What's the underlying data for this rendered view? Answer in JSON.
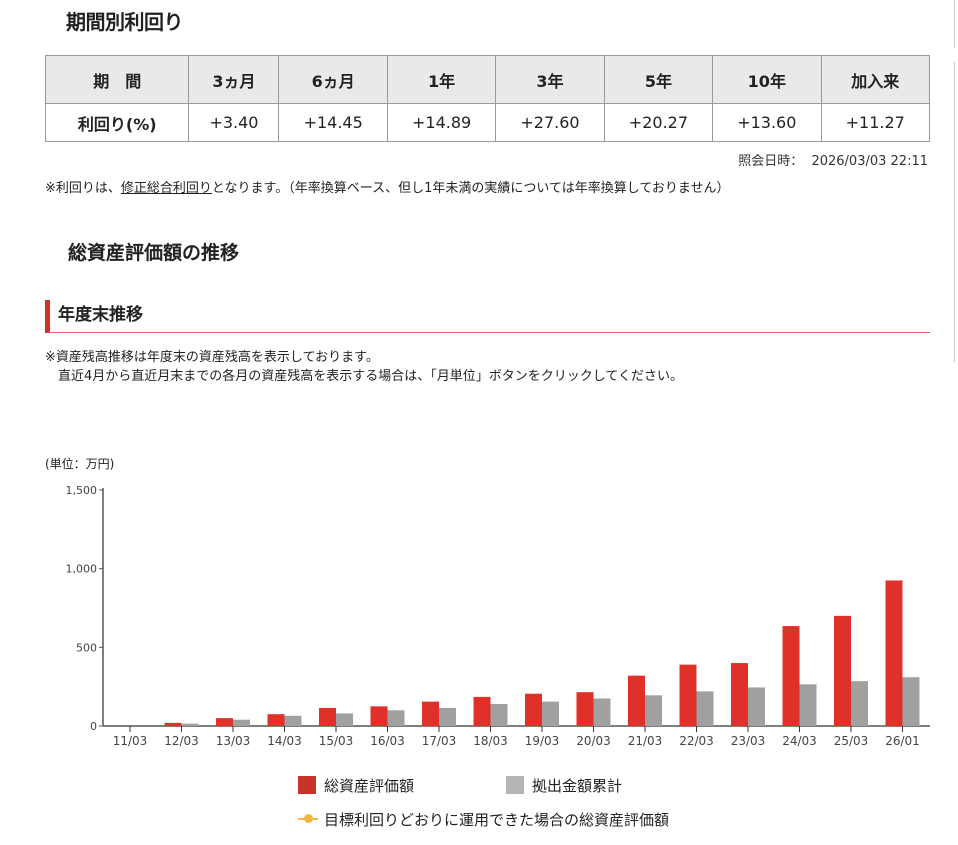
{
  "section_title": "期間別利回り",
  "yield_table": {
    "header_label": "期　間",
    "row_label": "利回り(%)",
    "periods": [
      "3ヵ月",
      "6ヵ月",
      "1年",
      "3年",
      "5年",
      "10年",
      "加入来"
    ],
    "values": [
      "+3.40",
      "+14.45",
      "+14.89",
      "+27.60",
      "+20.27",
      "+13.60",
      "+11.27"
    ]
  },
  "query_label": "照会日時：",
  "query_datetime": "2026/03/03 22:11",
  "note_prefix": "※利回りは、",
  "note_link": "修正総合利回り",
  "note_suffix": "となります。（年率換算ベース、但し1年未満の実績については年率換算しておりません）",
  "asset_title": "総資産評価額の推移",
  "subsection_title": "年度末推移",
  "note2_line1": "※資産残高推移は年度末の資産残高を表示しております。",
  "note2_line2": "直近4月から直近月末までの各月の資産残高を表示する場合は、「月単位」ボタンをクリックしてください。",
  "unit_label": "(単位：万円)",
  "colors": {
    "total": "#e0302a",
    "contrib": "#a0a0a0",
    "target": "#f0b840",
    "accent": "#c9332b"
  },
  "chart_data": {
    "type": "bar",
    "categories": [
      "11/03",
      "12/03",
      "13/03",
      "14/03",
      "15/03",
      "16/03",
      "17/03",
      "18/03",
      "19/03",
      "20/03",
      "21/03",
      "22/03",
      "23/03",
      "24/03",
      "25/03",
      "26/01"
    ],
    "series": [
      {
        "name": "総資産評価額",
        "values": [
          0,
          20,
          50,
          75,
          115,
          125,
          155,
          185,
          205,
          215,
          320,
          390,
          400,
          635,
          700,
          925
        ]
      },
      {
        "name": "拠出金額累計",
        "values": [
          0,
          15,
          40,
          65,
          80,
          100,
          115,
          140,
          155,
          175,
          195,
          220,
          245,
          265,
          285,
          310
        ]
      }
    ],
    "yticks": [
      "0",
      "500",
      "1,000",
      "1,500"
    ],
    "ytick_values": [
      0,
      500,
      1000,
      1500
    ],
    "ylim": [
      0,
      1500
    ],
    "legend": [
      "総資産評価額",
      "拠出金額累計",
      "目標利回りどおりに運用できた場合の総資産評価額"
    ],
    "legend_placement": "bottom"
  }
}
